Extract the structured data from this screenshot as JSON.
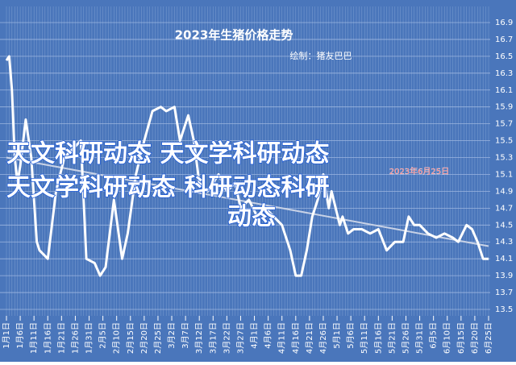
{
  "chart_data": {
    "type": "line",
    "title": "2023年生猪价格走势",
    "subtitle": "绘制：猪友巴巴",
    "annotation": "2023年6月25日",
    "watermark": [
      "天文科研动态 天文学科研动态",
      "天文学科研动态 科研动态科研",
      "动态"
    ],
    "series": [
      {
        "color": "#ffffff",
        "x": [
          0,
          1,
          2,
          3,
          4,
          5,
          7,
          9,
          11,
          12,
          15,
          18,
          21,
          24,
          27,
          29,
          32,
          34,
          36,
          39,
          42,
          44,
          47,
          50,
          53,
          56,
          58,
          61,
          63,
          64,
          66,
          68,
          70,
          73,
          75,
          77,
          80,
          83,
          85,
          88,
          91,
          94,
          97,
          100,
          103,
          105,
          107,
          109,
          111,
          113,
          115,
          117,
          118,
          121,
          122,
          124,
          126,
          129,
          132,
          135,
          138,
          141,
          144,
          146,
          148,
          150,
          153,
          156,
          159,
          162,
          164,
          167,
          169,
          171,
          173,
          175
        ],
        "values": [
          16.45,
          16.5,
          16.1,
          15.3,
          15.0,
          15.2,
          15.75,
          15.3,
          14.3,
          14.2,
          14.1,
          14.9,
          15.3,
          15.4,
          15.5,
          14.1,
          14.05,
          13.9,
          14.0,
          14.8,
          14.1,
          14.4,
          15.1,
          15.5,
          15.85,
          15.9,
          15.85,
          15.9,
          15.5,
          15.6,
          15.8,
          15.5,
          15.0,
          14.9,
          15.0,
          15.1,
          14.9,
          15.0,
          14.7,
          14.8,
          14.6,
          14.7,
          14.6,
          14.5,
          14.2,
          13.9,
          13.9,
          14.2,
          14.6,
          14.8,
          15.1,
          14.7,
          14.9,
          14.5,
          14.6,
          14.4,
          14.45,
          14.45,
          14.4,
          14.45,
          14.2,
          14.3,
          14.3,
          14.6,
          14.5,
          14.5,
          14.4,
          14.35,
          14.4,
          14.35,
          14.3,
          14.5,
          14.45,
          14.3,
          14.1,
          14.1
        ]
      },
      {
        "color": "#c8d2e6",
        "x": [
          0,
          175
        ],
        "values": [
          15.3,
          14.25
        ]
      }
    ],
    "xlim": [
      0,
      175
    ],
    "xticks": [
      {
        "value": 0,
        "label": "1月1日"
      },
      {
        "value": 5,
        "label": "1月6日"
      },
      {
        "value": 10,
        "label": "1月11日"
      },
      {
        "value": 15,
        "label": "1月16日"
      },
      {
        "value": 20,
        "label": "1月21日"
      },
      {
        "value": 25,
        "label": "1月26日"
      },
      {
        "value": 30,
        "label": "1月31日"
      },
      {
        "value": 35,
        "label": "2月5日"
      },
      {
        "value": 40,
        "label": "2月10日"
      },
      {
        "value": 45,
        "label": "2月15日"
      },
      {
        "value": 50,
        "label": "2月20日"
      },
      {
        "value": 55,
        "label": "2月25日"
      },
      {
        "value": 60,
        "label": "3月2日"
      },
      {
        "value": 65,
        "label": "3月7日"
      },
      {
        "value": 70,
        "label": "3月12日"
      },
      {
        "value": 75,
        "label": "3月17日"
      },
      {
        "value": 80,
        "label": "3月22日"
      },
      {
        "value": 85,
        "label": "3月27日"
      },
      {
        "value": 90,
        "label": "4月1日"
      },
      {
        "value": 95,
        "label": "4月6日"
      },
      {
        "value": 100,
        "label": "4月11日"
      },
      {
        "value": 105,
        "label": "4月16日"
      },
      {
        "value": 110,
        "label": "4月21日"
      },
      {
        "value": 115,
        "label": "4月26日"
      },
      {
        "value": 120,
        "label": "5月1日"
      },
      {
        "value": 125,
        "label": "5月6日"
      },
      {
        "value": 130,
        "label": "5月11日"
      },
      {
        "value": 135,
        "label": "5月16日"
      },
      {
        "value": 140,
        "label": "5月21日"
      },
      {
        "value": 145,
        "label": "5月26日"
      },
      {
        "value": 150,
        "label": "5月31日"
      },
      {
        "value": 155,
        "label": "6月5日"
      },
      {
        "value": 160,
        "label": "6月10日"
      },
      {
        "value": 165,
        "label": "6月15日"
      },
      {
        "value": 170,
        "label": "6月20日"
      },
      {
        "value": 175,
        "label": "6月25日"
      }
    ],
    "ylim": [
      13.5,
      16.9
    ],
    "yticks": [
      13.5,
      13.7,
      13.9,
      14.1,
      14.3,
      14.5,
      14.7,
      14.9,
      15.1,
      15.3,
      15.5,
      15.7,
      15.9,
      16.1,
      16.3,
      16.5,
      16.7,
      16.9
    ],
    "grid": true,
    "background": "#4a76bb"
  }
}
